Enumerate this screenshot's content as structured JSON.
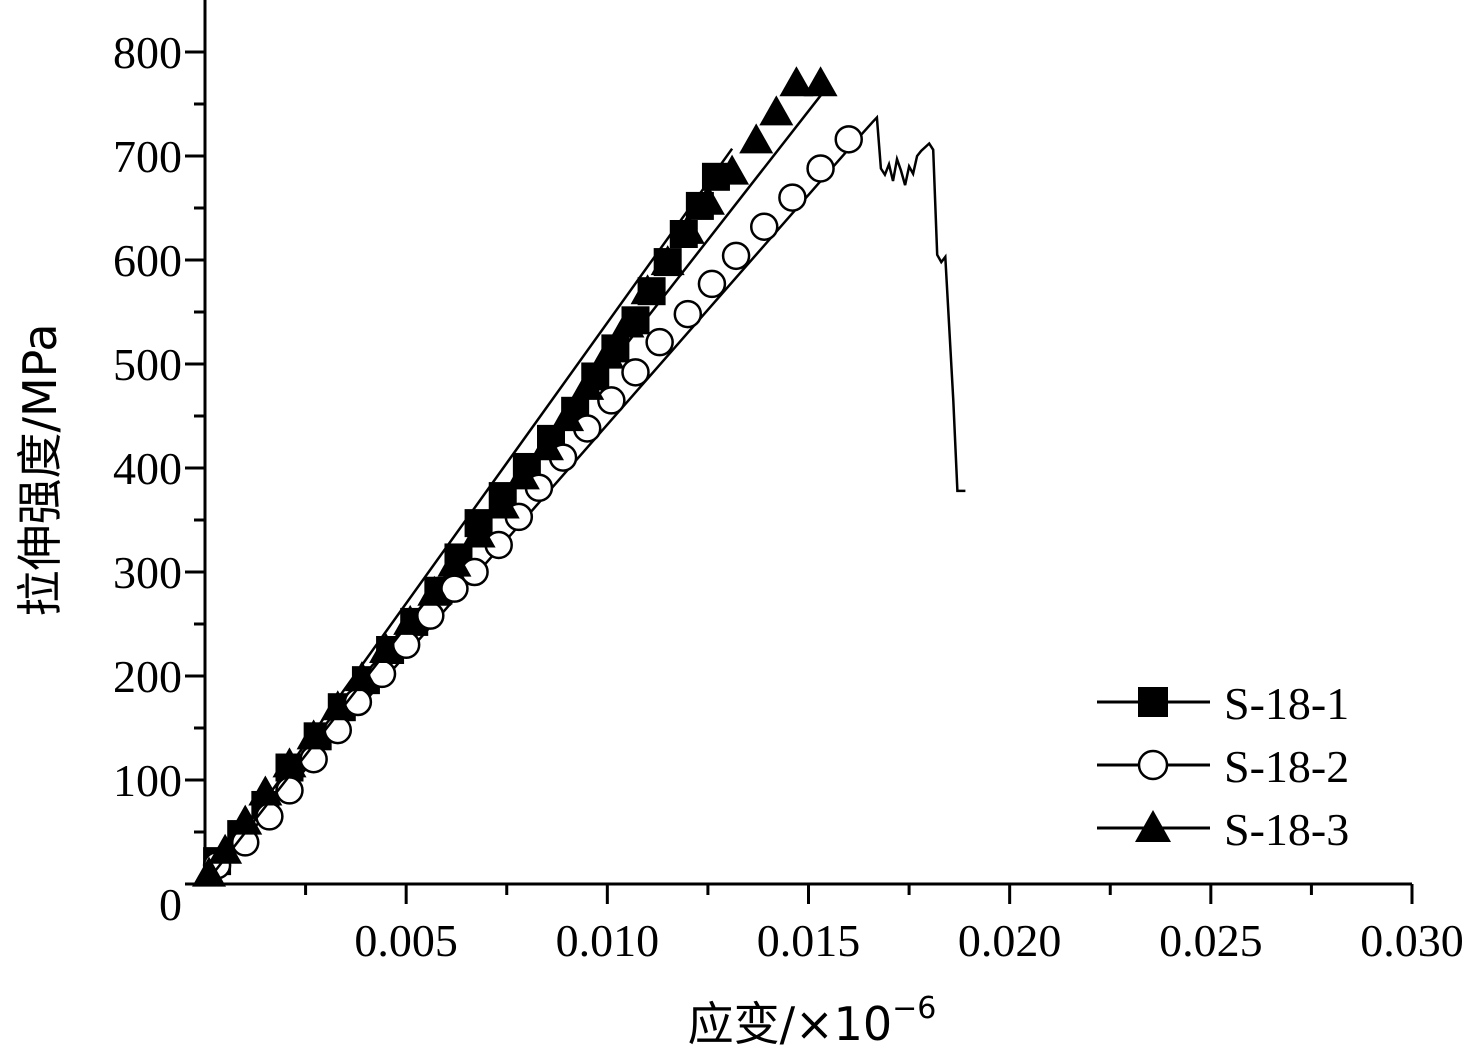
{
  "chart_data": {
    "type": "line",
    "xlabel_main": "应变/×10",
    "xlabel_exp": "−6",
    "ylabel": "拉伸强度/MPa",
    "xlim": [
      0,
      0.03
    ],
    "ylim": [
      0,
      850
    ],
    "x_ticks": [
      0.005,
      0.01,
      0.015,
      0.02,
      0.025,
      0.03
    ],
    "x_tick_labels": [
      "0.005",
      "0.010",
      "0.015",
      "0.020",
      "0.025",
      "0.030"
    ],
    "y_ticks": [
      0,
      100,
      200,
      300,
      400,
      500,
      600,
      700,
      800
    ],
    "y_tick_labels": [
      "0",
      "100",
      "200",
      "300",
      "400",
      "500",
      "600",
      "700",
      "800"
    ],
    "legend_position": "bottom-right",
    "series": [
      {
        "name": "S-18-1",
        "marker": "filled-square",
        "line": [
          [
            0.0,
            0
          ],
          [
            0.0131,
            707
          ]
        ],
        "points": [
          [
            0.0003,
            22
          ],
          [
            0.0009,
            48
          ],
          [
            0.0015,
            76
          ],
          [
            0.0021,
            112
          ],
          [
            0.0028,
            142
          ],
          [
            0.0034,
            170
          ],
          [
            0.004,
            196
          ],
          [
            0.0046,
            225
          ],
          [
            0.0052,
            252
          ],
          [
            0.0058,
            282
          ],
          [
            0.0063,
            314
          ],
          [
            0.0068,
            347
          ],
          [
            0.0074,
            373
          ],
          [
            0.008,
            401
          ],
          [
            0.0086,
            428
          ],
          [
            0.0092,
            455
          ],
          [
            0.0097,
            488
          ],
          [
            0.0102,
            515
          ],
          [
            0.0107,
            542
          ],
          [
            0.0111,
            570
          ],
          [
            0.0115,
            598
          ],
          [
            0.0119,
            625
          ],
          [
            0.0123,
            652
          ],
          [
            0.0127,
            680
          ]
        ]
      },
      {
        "name": "S-18-2",
        "marker": "open-circle",
        "line": [
          [
            0.0,
            0
          ],
          [
            0.0163,
            720
          ],
          [
            0.0166,
            733
          ],
          [
            0.0167,
            737
          ],
          [
            0.0168,
            688
          ],
          [
            0.0169,
            682
          ],
          [
            0.017,
            692
          ],
          [
            0.0171,
            676
          ],
          [
            0.0172,
            697
          ],
          [
            0.0173,
            686
          ],
          [
            0.0174,
            672
          ],
          [
            0.0175,
            690
          ],
          [
            0.0176,
            683
          ],
          [
            0.0177,
            700
          ],
          [
            0.0178,
            705
          ],
          [
            0.018,
            712
          ],
          [
            0.0181,
            706
          ],
          [
            0.0182,
            605
          ],
          [
            0.0183,
            598
          ],
          [
            0.0184,
            603
          ],
          [
            0.0186,
            465
          ],
          [
            0.0187,
            378
          ],
          [
            0.0189,
            378
          ]
        ],
        "points": [
          [
            0.0003,
            18
          ],
          [
            0.001,
            40
          ],
          [
            0.0016,
            65
          ],
          [
            0.0021,
            90
          ],
          [
            0.0027,
            120
          ],
          [
            0.0033,
            148
          ],
          [
            0.0038,
            175
          ],
          [
            0.0044,
            202
          ],
          [
            0.005,
            230
          ],
          [
            0.0056,
            258
          ],
          [
            0.0062,
            284
          ],
          [
            0.0067,
            300
          ],
          [
            0.0073,
            326
          ],
          [
            0.0078,
            353
          ],
          [
            0.0083,
            381
          ],
          [
            0.0089,
            410
          ],
          [
            0.0095,
            438
          ],
          [
            0.0101,
            465
          ],
          [
            0.0107,
            492
          ],
          [
            0.0113,
            521
          ],
          [
            0.012,
            548
          ],
          [
            0.0126,
            577
          ],
          [
            0.0132,
            604
          ],
          [
            0.0139,
            632
          ],
          [
            0.0146,
            660
          ],
          [
            0.0153,
            688
          ],
          [
            0.016,
            716
          ]
        ]
      },
      {
        "name": "S-18-3",
        "marker": "filled-triangle",
        "line": [
          [
            0.0,
            0
          ],
          [
            0.0155,
            768
          ]
        ],
        "points": [
          [
            0.0001,
            10
          ],
          [
            0.0005,
            32
          ],
          [
            0.001,
            60
          ],
          [
            0.0015,
            88
          ],
          [
            0.0021,
            115
          ],
          [
            0.0027,
            142
          ],
          [
            0.0033,
            170
          ],
          [
            0.0039,
            198
          ],
          [
            0.0045,
            225
          ],
          [
            0.0051,
            252
          ],
          [
            0.0057,
            280
          ],
          [
            0.0062,
            308
          ],
          [
            0.0068,
            336
          ],
          [
            0.0074,
            364
          ],
          [
            0.0079,
            392
          ],
          [
            0.0085,
            420
          ],
          [
            0.009,
            448
          ],
          [
            0.0095,
            478
          ],
          [
            0.01,
            508
          ],
          [
            0.0105,
            538
          ],
          [
            0.011,
            570
          ],
          [
            0.0115,
            598
          ],
          [
            0.012,
            628
          ],
          [
            0.0125,
            656
          ],
          [
            0.0131,
            685
          ],
          [
            0.0137,
            715
          ],
          [
            0.0142,
            742
          ],
          [
            0.0147,
            770
          ],
          [
            0.0153,
            770
          ]
        ]
      }
    ]
  }
}
